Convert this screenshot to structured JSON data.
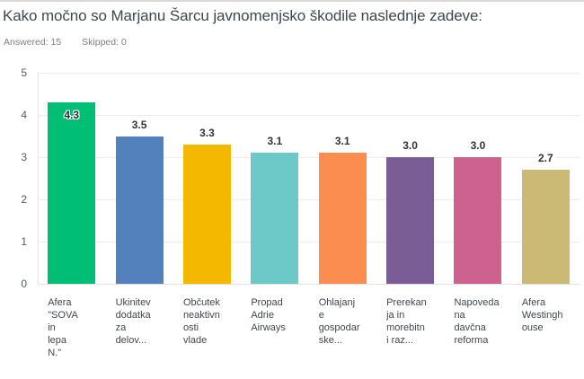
{
  "header": {
    "title": "Kako močno so Marjanu Šarcu javnomenjsko škodile naslednje zadeve:",
    "answered": "Answered: 15",
    "skipped": "Skipped: 0"
  },
  "chart_data": {
    "type": "bar",
    "title": "Kako močno so Marjanu Šarcu javnomenjsko škodile naslednje zadeve:",
    "categories": [
      "Afera \"SOVA in lepa N.\"",
      "Ukinitev dodatka za delov...",
      "Občutek neaktivnosti vlade",
      "Propad Adrie Airways",
      "Ohlajanje gospodarske...",
      "Prerekanja in morebitni raz...",
      "Napovedana davčna reforma",
      "Afera Westinghouse"
    ],
    "categories_display": [
      "Afera\n\"SOVA\nin\nlepa\nN.\"",
      "Ukinitev\ndodatka\nza\ndelov...",
      "Občutek\nneaktivn\nosti\nvlade",
      "Propad\nAdrie\nAirways",
      "Ohlajanj\ne\ngospodar\nske...",
      "Prerekan\nja in\nmorebitn\ni raz...",
      "Napoveda\nna\ndavčna\nreforma",
      "Afera\nWestingh\nouse"
    ],
    "values": [
      4.3,
      3.5,
      3.3,
      3.1,
      3.1,
      3.0,
      3.0,
      2.7
    ],
    "value_labels": [
      "4.3",
      "3.5",
      "3.3",
      "3.1",
      "3.1",
      "3.0",
      "3.0",
      "2.7"
    ],
    "colors": [
      "#00be75",
      "#5381bc",
      "#f5b800",
      "#6dc9c7",
      "#fc8d50",
      "#7b5d96",
      "#ce628f",
      "#cbb976"
    ],
    "label_inside": [
      true,
      false,
      false,
      false,
      false,
      false,
      false,
      false
    ],
    "xlabel": "",
    "ylabel": "",
    "ylim": [
      0,
      5
    ],
    "ytick_step": 1,
    "grid": true,
    "legend": false
  }
}
